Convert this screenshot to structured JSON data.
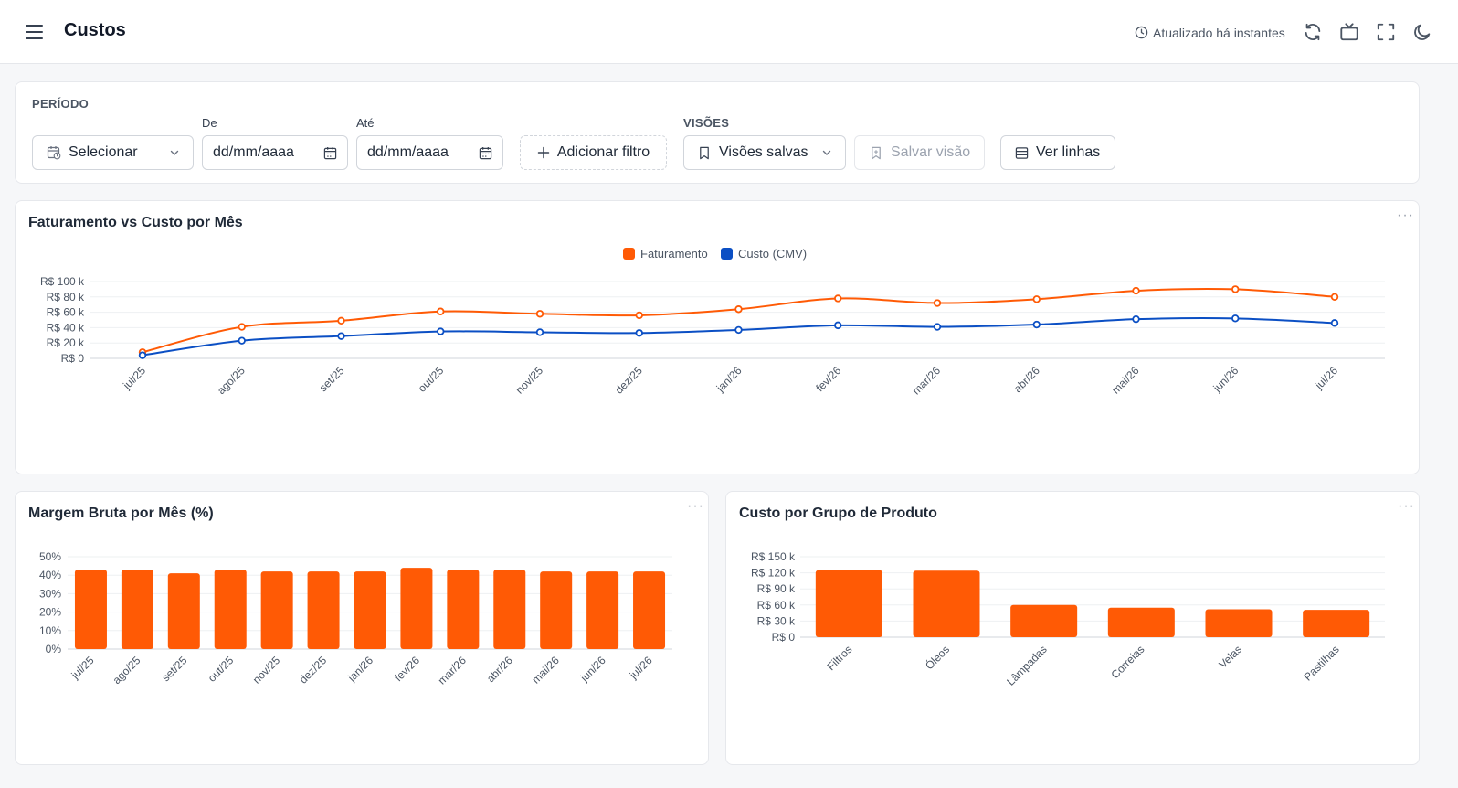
{
  "header": {
    "title": "Custos",
    "updated_text": "Atualizado há instantes",
    "icons": [
      "menu-icon",
      "clock-icon",
      "refresh-icon",
      "tv-icon",
      "fullscreen-icon",
      "moon-icon"
    ]
  },
  "filters": {
    "period_label": "PERÍODO",
    "period_select": "Selecionar",
    "from_label": "De",
    "from_value": "dd/mm/aaaa",
    "to_label": "Até",
    "to_value": "dd/mm/aaaa",
    "add_filter": "Adicionar filtro",
    "views_label": "VISÕES",
    "saved_views": "Visões salvas",
    "save_view": "Salvar visão",
    "see_rows": "Ver linhas"
  },
  "colors": {
    "faturamento": "#ff5a05",
    "custo": "#0b4fc4",
    "bars": "#ff5a05"
  },
  "charts": {
    "line_title": "Faturamento vs Custo por Mês",
    "margin_title": "Margem Bruta por Mês (%)",
    "group_title": "Custo por Grupo de Produto",
    "more_label": "···"
  },
  "chart_data": [
    {
      "type": "line",
      "title": "Faturamento vs Custo por Mês",
      "legend_position": "top",
      "categories": [
        "jul/25",
        "ago/25",
        "set/25",
        "out/25",
        "nov/25",
        "dez/25",
        "jan/26",
        "fev/26",
        "mar/26",
        "abr/26",
        "mai/26",
        "jun/26",
        "jul/26"
      ],
      "series": [
        {
          "name": "Faturamento",
          "values": [
            8,
            41,
            49,
            61,
            58,
            56,
            64,
            78,
            72,
            77,
            88,
            90,
            80
          ]
        },
        {
          "name": "Custo (CMV)",
          "values": [
            4,
            23,
            29,
            35,
            34,
            33,
            37,
            43,
            41,
            44,
            51,
            52,
            46
          ]
        }
      ],
      "yticks": [
        "R$ 0",
        "R$ 20 k",
        "R$ 40 k",
        "R$ 60 k",
        "R$ 80 k",
        "R$ 100 k"
      ],
      "ylim": [
        0,
        100
      ]
    },
    {
      "type": "bar",
      "title": "Margem Bruta por Mês (%)",
      "categories": [
        "jul/25",
        "ago/25",
        "set/25",
        "out/25",
        "nov/25",
        "dez/25",
        "jan/26",
        "fev/26",
        "mar/26",
        "abr/26",
        "mai/26",
        "jun/26",
        "jul/26"
      ],
      "values": [
        43,
        43,
        41,
        43,
        42,
        42,
        42,
        44,
        43,
        43,
        42,
        42,
        42
      ],
      "yticks": [
        "0%",
        "10%",
        "20%",
        "30%",
        "40%",
        "50%"
      ],
      "ylim": [
        0,
        50
      ]
    },
    {
      "type": "bar",
      "title": "Custo por Grupo de Produto",
      "categories": [
        "Filtros",
        "Óleos",
        "Lâmpadas",
        "Correias",
        "Velas",
        "Pastilhas"
      ],
      "values": [
        125,
        124,
        60,
        55,
        52,
        51
      ],
      "yticks": [
        "R$ 0",
        "R$ 30 k",
        "R$ 60 k",
        "R$ 90 k",
        "R$ 120 k",
        "R$ 150 k"
      ],
      "ylim": [
        0,
        150
      ]
    }
  ]
}
